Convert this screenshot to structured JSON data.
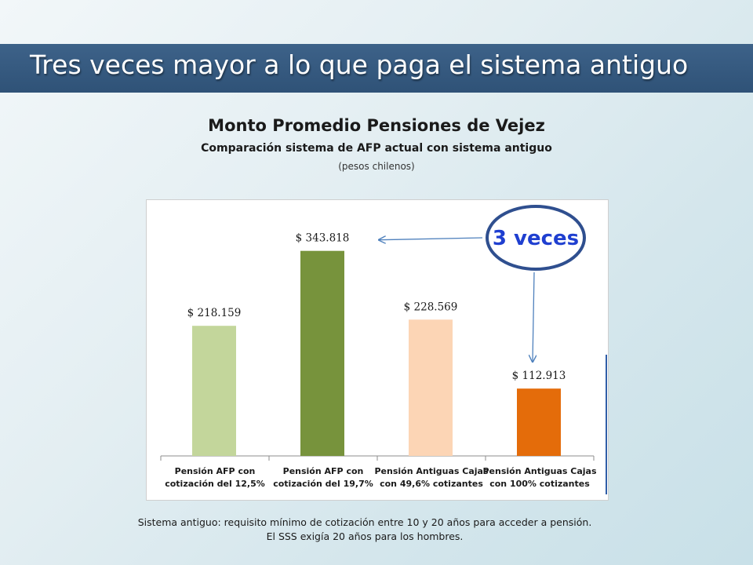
{
  "slide": {
    "title": "Tres veces mayor a lo que paga el sistema antiguo",
    "footnote_line1": "Sistema antiguo: requisito mínimo de cotización entre 10 y 20 años para acceder a pensión.",
    "footnote_line2": "El SSS exigía 20 años para los hombres."
  },
  "chart_data": {
    "type": "bar",
    "title": "Monto Promedio Pensiones de Vejez",
    "subtitle": "Comparación sistema de AFP actual con sistema antiguo",
    "unit": "(pesos chilenos)",
    "categories": [
      [
        "Pensión AFP con",
        "cotización del 12,5%"
      ],
      [
        "Pensión AFP con",
        "cotización del 19,7%"
      ],
      [
        "Pensión Antiguas Cajas",
        "con 49,6% cotizantes"
      ],
      [
        "Pensión Antiguas Cajas",
        "con 100% cotizantes"
      ]
    ],
    "values": [
      218159,
      343818,
      228569,
      112913
    ],
    "labels": [
      "$ 218.159",
      "$ 343.818",
      "$ 228.569",
      "$ 112.913"
    ],
    "colors": [
      "#c3d69b",
      "#77933c",
      "#fcd5b5",
      "#e46c0a"
    ],
    "ylim": [
      0,
      400000
    ],
    "grid": false,
    "annotation": {
      "text": "3 veces",
      "ellipse_color": "#2f4f8f",
      "text_color": "#1f3fd0",
      "arrow_color": "#4f81bd",
      "from_bar": 3,
      "to_bar": 1
    }
  }
}
